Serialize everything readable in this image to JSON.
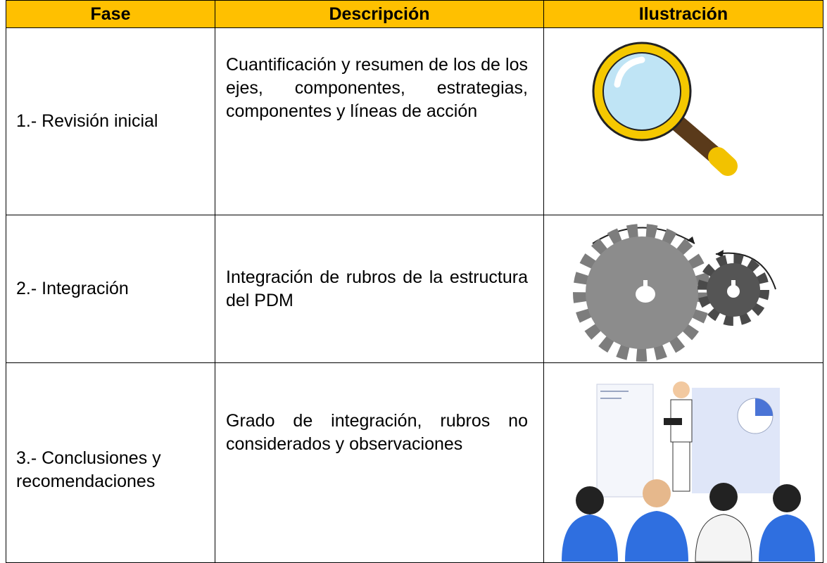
{
  "table": {
    "header": [
      "Fase",
      "Descripción",
      "Ilustración"
    ],
    "rows": [
      [
        "1.- Revisión inicial",
        "Cuantificación y resumen de los de los ejes, componentes, estrategias, componentes y líneas de acción"
      ],
      [
        "2.- Integración",
        "Integración de rubros de la estructura del PDM"
      ],
      [
        "3.- Conclusiones y recomendaciones",
        "Grado de integración, rubros no considerados y observaciones"
      ]
    ]
  }
}
